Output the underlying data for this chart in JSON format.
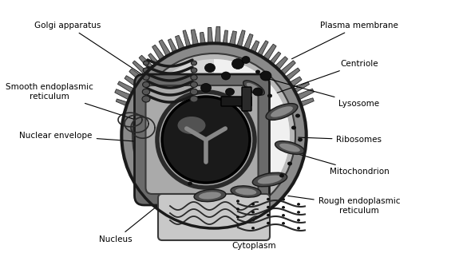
{
  "bg_color": "#ffffff",
  "labels": {
    "golgi_apparatus": "Golgi apparatus",
    "smooth_er": "Smooth endoplasmic\nreticulum",
    "nuclear_envelope": "Nuclear envelope",
    "nucleus": "Nucleus",
    "plasma_membrane": "Plasma membrane",
    "centriole": "Centriole",
    "lysosome": "Lysosome",
    "ribosomes": "Ribosomes",
    "mitochondrion": "Mitochondrion",
    "rough_er": "Rough endoplasmic\nreticulum",
    "cytoplasm": "Cytoplasm"
  },
  "figsize": [
    5.7,
    3.32
  ],
  "dpi": 100
}
